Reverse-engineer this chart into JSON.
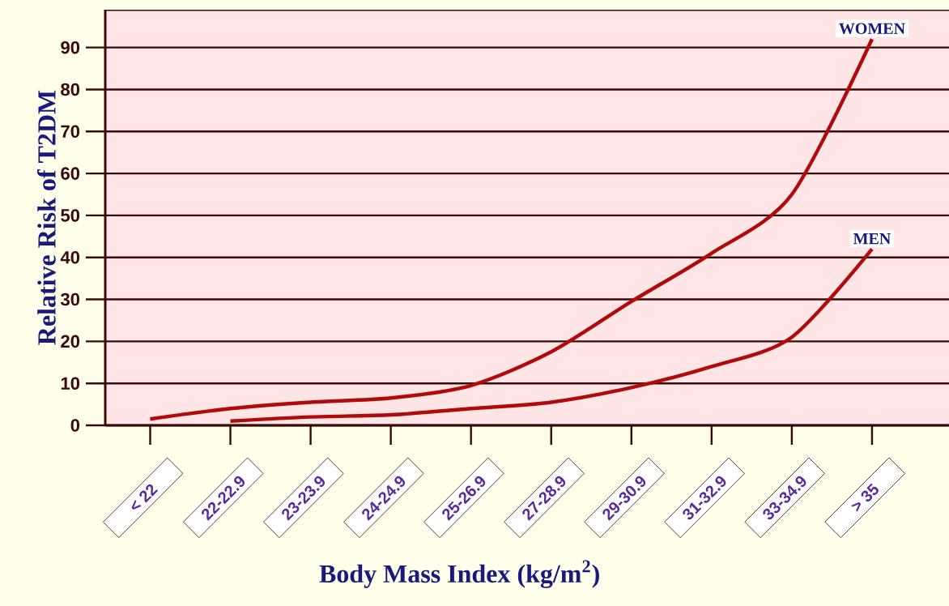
{
  "chart_data": {
    "type": "line",
    "xlabel": "Body Mass Index (kg/m$^{2}$)",
    "ylabel": "Relative Risk of T2DM",
    "categories": [
      "< 22",
      "22-22.9",
      "23-23.9",
      "24-24.9",
      "25-26.9",
      "27-28.9",
      "29-30.9",
      "31-32.9",
      "33-34.9",
      "> 35"
    ],
    "series": [
      {
        "name": "WOMEN",
        "color": "#b00a0a",
        "values": [
          1.5,
          4,
          5.5,
          6.5,
          9.5,
          17.5,
          29.5,
          41,
          55,
          92
        ]
      },
      {
        "name": "MEN",
        "color": "#b00a0a",
        "values": [
          null,
          1,
          2,
          2.5,
          4,
          5.5,
          9,
          14,
          21,
          42
        ]
      }
    ],
    "ylim": [
      0,
      99
    ],
    "yticks": [
      0,
      10,
      20,
      30,
      40,
      50,
      60,
      70,
      80,
      90
    ],
    "grid": "y",
    "legend": false,
    "line_style": "solid"
  }
}
